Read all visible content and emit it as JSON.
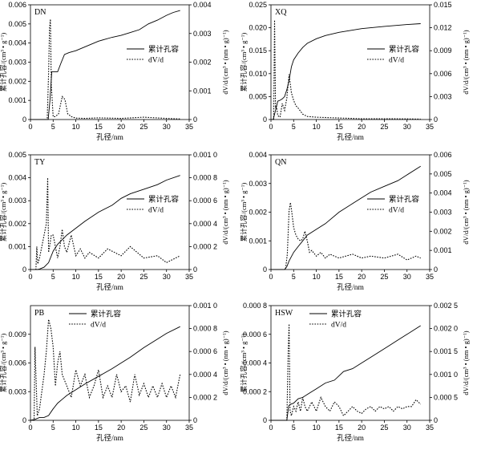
{
  "chart_data": [
    {
      "type": "line",
      "panel_label": "DN",
      "xlabel": "孔径/nm",
      "ylabel": "累计孔容/(cm³ • g⁻¹)",
      "y2label": "dV/d/(cm³ • (nm • g)⁻¹)",
      "xlim": [
        0,
        35
      ],
      "ylim": [
        0,
        0.006
      ],
      "y2lim": [
        0,
        0.004
      ],
      "xticks": [
        "0",
        "5",
        "10",
        "15",
        "20",
        "25",
        "30",
        "35"
      ],
      "yticks": [
        "0",
        "0.001",
        "0.002",
        "0.003",
        "0.004",
        "0.005",
        "0.006"
      ],
      "y2ticks": [
        "0",
        "0.001",
        "0.002",
        "0.003",
        "0.004"
      ],
      "legend": [
        "累计孔容",
        "dV/d"
      ],
      "legend_position": "center-right",
      "series": [
        {
          "name": "累计孔容",
          "axis": "left",
          "style": "solid",
          "x": [
            0,
            3.9,
            4.3,
            4.7,
            6.0,
            6.8,
            7.5,
            8.5,
            10,
            12,
            15,
            18,
            20,
            22,
            24,
            26,
            28,
            30,
            31.5,
            33
          ],
          "y": [
            0,
            0,
            0.001,
            0.0025,
            0.0025,
            0.003,
            0.0034,
            0.0035,
            0.0036,
            0.0038,
            0.0041,
            0.0043,
            0.0044,
            0.00455,
            0.0047,
            0.005,
            0.0052,
            0.00545,
            0.0056,
            0.0057
          ]
        },
        {
          "name": "dV/d",
          "axis": "right",
          "style": "dotted",
          "x": [
            0,
            3.7,
            4.0,
            4.2,
            4.4,
            4.6,
            5.0,
            5.5,
            6.2,
            7.0,
            7.6,
            8.2,
            9.0,
            10,
            12,
            15,
            20,
            25,
            30,
            33
          ],
          "y": [
            0,
            0,
            0.0016,
            0.0032,
            0.0035,
            0.0012,
            0.0001,
            0.0001,
            0.0002,
            0.0008,
            0.0007,
            0.0002,
            0.0001,
            5e-05,
            4e-05,
            6e-05,
            4e-05,
            8e-05,
            4e-05,
            2e-05
          ]
        }
      ]
    },
    {
      "type": "line",
      "panel_label": "XQ",
      "xlabel": "孔径/nm",
      "ylabel": "累计孔容/(cm³ • g⁻¹)",
      "y2label": "dV/d/(cm³ • (nm • g)⁻¹)",
      "xlim": [
        0,
        35
      ],
      "ylim": [
        0,
        0.025
      ],
      "y2lim": [
        0,
        0.015
      ],
      "xticks": [
        "0",
        "5",
        "10",
        "15",
        "20",
        "25",
        "30",
        "35"
      ],
      "yticks": [
        "0",
        "0.005",
        "0.010",
        "0.015",
        "0.020",
        "0.025"
      ],
      "y2ticks": [
        "0",
        "0.003",
        "0.006",
        "0.009",
        "0.012",
        "0.015"
      ],
      "legend": [
        "累计孔容",
        "dV/d"
      ],
      "legend_position": "center-right",
      "series": [
        {
          "name": "累计孔容",
          "axis": "left",
          "style": "solid",
          "x": [
            0,
            0.5,
            1.0,
            1.5,
            2.0,
            2.5,
            3.0,
            3.5,
            4.0,
            4.5,
            5.0,
            6.0,
            7.0,
            8.0,
            10,
            12,
            15,
            20,
            25,
            30,
            33
          ],
          "y": [
            0,
            0,
            0.002,
            0.004,
            0.0042,
            0.0045,
            0.005,
            0.0065,
            0.0085,
            0.0115,
            0.013,
            0.0145,
            0.0157,
            0.0166,
            0.0176,
            0.0183,
            0.019,
            0.0198,
            0.0203,
            0.0207,
            0.0209
          ]
        },
        {
          "name": "dV/d",
          "axis": "right",
          "style": "dotted",
          "x": [
            0,
            0.6,
            0.8,
            1.0,
            1.2,
            1.5,
            2.0,
            2.5,
            3.0,
            3.5,
            4.0,
            4.5,
            5.0,
            5.5,
            6.0,
            7.0,
            8.0,
            10,
            15,
            20,
            25,
            30,
            33
          ],
          "y": [
            0,
            0,
            0.013,
            0.0015,
            0.0018,
            0.0005,
            0.0003,
            0.0021,
            0.0012,
            0.0028,
            0.0059,
            0.0035,
            0.0025,
            0.0018,
            0.0015,
            0.0007,
            0.0004,
            0.0003,
            0.0002,
            0.0001,
            0.0001,
            8e-05,
            5e-05
          ]
        }
      ]
    },
    {
      "type": "line",
      "panel_label": "TY",
      "xlabel": "孔径/nm",
      "ylabel": "累计孔容/(cm³ • g⁻¹)",
      "y2label": "dV/d/(cm³ • (nm • g)⁻¹)",
      "xlim": [
        0,
        35
      ],
      "ylim": [
        0,
        0.005
      ],
      "y2lim": [
        0,
        0.001
      ],
      "xticks": [
        "0",
        "5",
        "10",
        "15",
        "20",
        "25",
        "30",
        "35"
      ],
      "yticks": [
        "0",
        "0.001",
        "0.002",
        "0.003",
        "0.004",
        "0.005"
      ],
      "y2ticks": [
        "0",
        "0.000 2",
        "0.000 4",
        "0.000 6",
        "0.000 8",
        "0.001 0"
      ],
      "legend": [
        "累计孔容",
        "dV/d"
      ],
      "legend_position": "center-right",
      "series": [
        {
          "name": "累计孔容",
          "axis": "left",
          "style": "solid",
          "x": [
            0,
            1.5,
            2.0,
            3.0,
            4.0,
            5.0,
            6.0,
            7.0,
            8.0,
            10,
            12,
            15,
            18,
            20,
            22,
            25,
            28,
            30,
            33
          ],
          "y": [
            0,
            0,
            2e-05,
            0.0001,
            0.0003,
            0.0008,
            0.0011,
            0.0013,
            0.0015,
            0.0018,
            0.0021,
            0.0025,
            0.0028,
            0.0031,
            0.0033,
            0.0035,
            0.0037,
            0.0039,
            0.0041
          ]
        },
        {
          "name": "dV/d",
          "axis": "right",
          "style": "dotted",
          "x": [
            0,
            1.2,
            1.4,
            1.6,
            2.0,
            3.0,
            3.5,
            3.8,
            4.0,
            4.2,
            4.6,
            5.0,
            6.0,
            6.5,
            7.0,
            7.5,
            8.0,
            9.0,
            10,
            11,
            12,
            13,
            15,
            17,
            20,
            22,
            25,
            28,
            30,
            32,
            33
          ],
          "y": [
            0,
            0,
            0.0002,
            5e-05,
            0.0001,
            0.0003,
            0.0004,
            0.0008,
            0.00015,
            0.0002,
            0.0003,
            0.0003,
            0.0001,
            0.0002,
            0.00035,
            0.0002,
            0.00015,
            0.0003,
            0.00012,
            0.00018,
            0.0001,
            0.00015,
            0.0001,
            0.00018,
            0.00012,
            0.0002,
            0.0001,
            0.00012,
            6e-05,
            0.0001,
            0.00012
          ]
        }
      ]
    },
    {
      "type": "line",
      "panel_label": "QN",
      "xlabel": "孔径/nm",
      "ylabel": "累计孔容/(cm³ • g⁻¹)",
      "y2label": "dV/d/(cm³ • (nm • g)⁻¹)",
      "xlim": [
        0,
        35
      ],
      "ylim": [
        0,
        0.004
      ],
      "y2lim": [
        0,
        0.006
      ],
      "xticks": [
        "0",
        "5",
        "10",
        "15",
        "20",
        "25",
        "30",
        "35"
      ],
      "yticks": [
        "0",
        "0.001",
        "0.002",
        "0.003",
        "0.004"
      ],
      "y2ticks": [
        "0",
        "0.001",
        "0.002",
        "0.003",
        "0.004",
        "0.005",
        "0.006"
      ],
      "legend": [
        "累计孔容",
        "dV/d"
      ],
      "legend_position": "center-right",
      "series": [
        {
          "name": "累计孔容",
          "axis": "left",
          "style": "solid",
          "x": [
            0,
            3.0,
            3.5,
            4.0,
            5.0,
            6.0,
            7.0,
            8.0,
            10,
            12,
            15,
            18,
            20,
            22,
            25,
            28,
            30,
            33
          ],
          "y": [
            0,
            0,
            0.0001,
            0.0003,
            0.0006,
            0.0008,
            0.001,
            0.0012,
            0.0014,
            0.0016,
            0.002,
            0.0023,
            0.0025,
            0.0027,
            0.0029,
            0.0031,
            0.0033,
            0.0036
          ]
        },
        {
          "name": "dV/d",
          "axis": "right",
          "style": "dotted",
          "x": [
            0,
            3.2,
            3.6,
            4.0,
            4.3,
            4.6,
            5.0,
            5.5,
            6.0,
            6.5,
            7.0,
            7.5,
            8.0,
            8.5,
            9.0,
            10,
            11,
            12,
            13,
            15,
            18,
            20,
            22,
            25,
            28,
            30,
            32,
            33
          ],
          "y": [
            0,
            0,
            0.0008,
            0.0031,
            0.0035,
            0.003,
            0.0022,
            0.0018,
            0.0016,
            0.0015,
            0.0016,
            0.002,
            0.0015,
            0.0009,
            0.001,
            0.0007,
            0.0009,
            0.0006,
            0.0008,
            0.0006,
            0.0008,
            0.0006,
            0.0007,
            0.0006,
            0.0008,
            0.0005,
            0.0007,
            0.0006
          ]
        }
      ]
    },
    {
      "type": "line",
      "panel_label": "PB",
      "xlabel": "孔径/nm",
      "ylabel": "累计孔容/(cm³ • g⁻¹)",
      "y2label": "dV/d/(cm³ • (nm • g)⁻¹)",
      "xlim": [
        0,
        35
      ],
      "ylim": [
        0,
        0.012
      ],
      "y2lim": [
        0,
        0.001
      ],
      "xticks": [
        "0",
        "5",
        "10",
        "15",
        "20",
        "25",
        "30",
        "35"
      ],
      "yticks": [
        "0",
        "0.003",
        "0.006",
        "0.009"
      ],
      "y2ticks": [
        "0",
        "0.000 2",
        "0.000 4",
        "0.000 6",
        "0.000 8",
        "0.001 0"
      ],
      "legend": [
        "累计孔容",
        "dV/d"
      ],
      "legend_position": "top-center",
      "series": [
        {
          "name": "累计孔容",
          "axis": "left",
          "style": "solid",
          "x": [
            0,
            1.0,
            2.0,
            3.0,
            4.0,
            5.0,
            6.0,
            7.0,
            8.0,
            10,
            12,
            15,
            18,
            20,
            22,
            25,
            28,
            30,
            33
          ],
          "y": [
            0,
            0.0001,
            0.0003,
            0.0003,
            0.0005,
            0.0012,
            0.0018,
            0.0022,
            0.0026,
            0.0032,
            0.0038,
            0.0046,
            0.0054,
            0.006,
            0.0066,
            0.0076,
            0.0085,
            0.0091,
            0.0098
          ]
        },
        {
          "name": "dV/d",
          "axis": "right",
          "style": "dotted",
          "x": [
            0,
            0.8,
            1.0,
            1.5,
            2.0,
            3.0,
            3.5,
            4.0,
            4.5,
            5.0,
            5.5,
            6.0,
            6.5,
            7.0,
            8.0,
            9.0,
            10,
            11,
            12,
            13,
            14,
            15,
            16,
            17,
            18,
            19,
            20,
            21,
            22,
            23,
            24,
            25,
            26,
            27,
            28,
            29,
            30,
            31,
            32,
            33
          ],
          "y": [
            0,
            0,
            0.00064,
            4e-05,
            0.0001,
            0.0004,
            0.0006,
            0.00088,
            0.0008,
            0.00064,
            0.0003,
            0.0005,
            0.0006,
            0.0004,
            0.0003,
            0.0002,
            0.00044,
            0.0003,
            0.0004,
            0.0002,
            0.0003,
            0.00044,
            0.0002,
            0.0003,
            0.0002,
            0.0004,
            0.00025,
            0.0003,
            0.00016,
            0.0004,
            0.00022,
            0.00032,
            0.0002,
            0.0003,
            0.0002,
            0.00032,
            0.0002,
            0.0003,
            0.0002,
            0.0004
          ]
        }
      ]
    },
    {
      "type": "line",
      "panel_label": "HSW",
      "xlabel": "孔径/nm",
      "ylabel": "累计孔容/(cm³ • g⁻¹)",
      "y2label": "dV/d/(cm³ • (nm • g)⁻¹)",
      "xlim": [
        0,
        35
      ],
      "ylim": [
        0,
        0.0008
      ],
      "y2lim": [
        0,
        0.0025
      ],
      "xticks": [
        "0",
        "5",
        "10",
        "15",
        "20",
        "25",
        "30",
        "35"
      ],
      "yticks": [
        "0",
        "0.000 2",
        "0.000 4",
        "0.000 6",
        "0.000 8"
      ],
      "y2ticks": [
        "0",
        "0.000 5",
        "0.001 0",
        "0.001 5",
        "0.002 0",
        "0.002 5"
      ],
      "legend": [
        "累计孔容",
        "dV/d"
      ],
      "legend_position": "top-center",
      "series": [
        {
          "name": "累计孔容",
          "axis": "left",
          "style": "solid",
          "x": [
            0,
            3.5,
            3.9,
            4.2,
            5.0,
            6.0,
            7.0,
            8.0,
            9.0,
            10,
            12,
            14,
            15,
            16,
            18,
            20,
            22,
            24,
            26,
            28,
            30,
            32,
            33
          ],
          "y": [
            0,
            0,
            0.0001,
            0.00011,
            0.00012,
            0.00015,
            0.00016,
            0.00018,
            0.0002,
            0.00022,
            0.00026,
            0.00028,
            0.00031,
            0.00034,
            0.00036,
            0.0004,
            0.00044,
            0.00048,
            0.00052,
            0.00056,
            0.0006,
            0.00064,
            0.00066
          ]
        },
        {
          "name": "dV/d",
          "axis": "right",
          "style": "dotted",
          "x": [
            0,
            3.5,
            3.8,
            4.0,
            4.2,
            4.5,
            5.0,
            5.5,
            6.0,
            6.5,
            7.0,
            7.5,
            8.0,
            9.0,
            10,
            11,
            12,
            13,
            14,
            15,
            16,
            17,
            18,
            19,
            20,
            21,
            22,
            23,
            24,
            25,
            26,
            27,
            28,
            29,
            30,
            31,
            32,
            33
          ],
          "y": [
            0,
            0,
            0.0015,
            0.0021,
            0.0002,
            0.0001,
            0.0003,
            0.0002,
            0.0004,
            0.0002,
            0.0005,
            0.0003,
            0.0002,
            0.0004,
            0.0002,
            0.0005,
            0.0003,
            0.0002,
            0.0004,
            0.0003,
            0.0001,
            0.0002,
            0.0003,
            0.0002,
            0.00015,
            0.00025,
            0.0003,
            0.0002,
            0.0003,
            0.00025,
            0.0003,
            0.0002,
            0.0003,
            0.00025,
            0.0003,
            0.0003,
            0.00045,
            0.00035
          ]
        }
      ]
    }
  ]
}
